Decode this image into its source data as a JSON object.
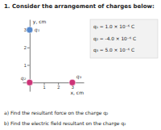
{
  "chart_data": {
    "type": "scatter",
    "title": "1.  Consider the arrangement of charges below:",
    "x_label": "x, cm",
    "y_label": "y, cm",
    "xlim": [
      -0.5,
      3.8
    ],
    "ylim": [
      -0.5,
      3.6
    ],
    "xticks": [
      1,
      2,
      3
    ],
    "yticks": [
      1,
      2,
      3
    ],
    "x": [
      0,
      0,
      3
    ],
    "values": [
      3,
      0,
      0
    ],
    "labels": [
      "q₁",
      "q₂",
      "q₃"
    ],
    "colors": [
      "#5588cc",
      "#cc3377",
      "#cc3377"
    ],
    "annotations": [
      "q₁ = 1.0 × 10⁻⁶ C",
      "q₂ = -4.0 × 10⁻⁶ C",
      "q₃ = 5.0 × 10⁻⁶ C"
    ],
    "footer": [
      "a)  Find the resultant force on the charge q₂",
      "b)  Find the electric field resultant on the charge q₂"
    ]
  }
}
